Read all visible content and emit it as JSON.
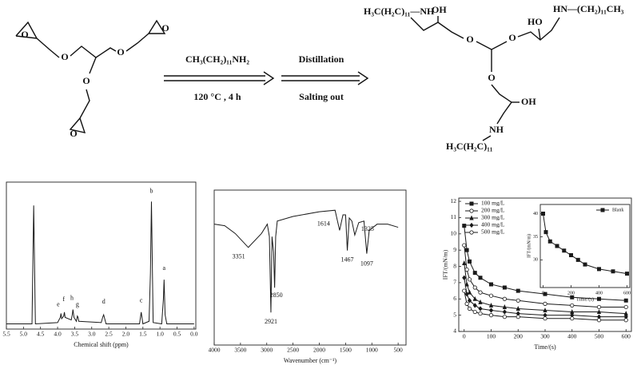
{
  "scheme": {
    "reactant_atoms": [
      "O",
      "O",
      "O",
      "O",
      "O",
      "O"
    ],
    "reagent": "CH₃(CH₂)₁₁NH₂",
    "conditions": "120 °C , 4 h",
    "step1": "Distillation",
    "step2": "Salting out",
    "product_labels": [
      "H₃C(H₂C)₁₁—NH",
      "OH",
      "HO",
      "HN—(CH₂)₁₁CH₃",
      "O",
      "O",
      "O",
      "OH",
      "NH",
      "H₃C(H₂C)₁₁"
    ]
  },
  "chart_data": [
    {
      "type": "line",
      "xlabel": "Chemical shift (ppm)",
      "xlim": [
        5.5,
        -0.05
      ],
      "ylim": [
        -3,
        110
      ],
      "xticks": [
        5.5,
        {
          "value": 5,
          "label": "5.0"
        },
        4.5,
        {
          "value": 4,
          "label": "4.0"
        },
        3.5,
        {
          "value": 3,
          "label": "3.0"
        },
        2.5,
        {
          "value": 2,
          "label": "2.0"
        },
        1.5,
        {
          "value": 1,
          "label": "1.0"
        },
        0.5,
        {
          "value": 0,
          "label": "0.0"
        }
      ],
      "series": [
        {
          "color": "#1a1a1a",
          "x": [
            5.5,
            4.75,
            4.7,
            4.65,
            4.0,
            3.92,
            3.9,
            3.88,
            3.82,
            3.8,
            3.78,
            3.6,
            3.57,
            3.55,
            3.52,
            3.45,
            3.42,
            3.4,
            3.38,
            2.72,
            2.68,
            2.65,
            2.62,
            2.58,
            1.6,
            1.55,
            1.5,
            1.32,
            1.28,
            1.25,
            1.2,
            0.95,
            0.9,
            0.88,
            0.85,
            0.8,
            0.0
          ],
          "values": [
            1,
            1,
            92,
            1,
            2,
            6,
            9,
            5,
            7,
            10,
            6,
            4,
            8,
            12,
            6,
            3,
            7,
            6,
            3,
            2,
            6,
            8,
            5,
            1,
            1,
            10,
            1,
            3,
            40,
            95,
            2,
            1,
            20,
            35,
            8,
            1,
            1
          ]
        }
      ],
      "annotations": [
        "a",
        "b",
        "c",
        "d",
        "e",
        "f",
        "g",
        "h"
      ]
    },
    {
      "type": "line",
      "xlabel": "Wavenumber (cm⁻¹)",
      "xlim": [
        4000,
        350
      ],
      "ylim": [
        0,
        100
      ],
      "xticks": [
        4000,
        3500,
        3000,
        2500,
        2000,
        1500,
        1000,
        500
      ],
      "series": [
        {
          "color": "#1a1a1a",
          "x": [
            4000,
            3800,
            3600,
            3351,
            3100,
            2990,
            2950,
            2921,
            2900,
            2870,
            2850,
            2830,
            2800,
            2500,
            2000,
            1700,
            1614,
            1550,
            1500,
            1467,
            1430,
            1380,
            1325,
            1250,
            1150,
            1097,
            1050,
            900,
            700,
            500
          ],
          "values": [
            78,
            77,
            72,
            63,
            72,
            78,
            70,
            21,
            70,
            60,
            37,
            70,
            80,
            83,
            86,
            87,
            74,
            84,
            84,
            61,
            82,
            80,
            71,
            79,
            80,
            59,
            74,
            78,
            78,
            76
          ]
        }
      ],
      "peak_labels": [
        3351,
        2921,
        2850,
        1614,
        1467,
        1325,
        1097
      ]
    },
    {
      "type": "line",
      "xlabel": "Time/(s)",
      "ylabel": "IFT/(mN/m)",
      "xlim": [
        -20,
        620
      ],
      "ylim": [
        4,
        12.2
      ],
      "xticks": [
        0,
        100,
        200,
        300,
        400,
        500,
        600
      ],
      "yticks": [
        4,
        5,
        6,
        7,
        8,
        9,
        10,
        11,
        12
      ],
      "legend": "upper left",
      "series": [
        {
          "name": "100 mg/L",
          "color": "#1a1a1a",
          "marker": "square",
          "x": [
            0,
            10,
            20,
            40,
            60,
            100,
            150,
            200,
            300,
            400,
            500,
            600
          ],
          "values": [
            10.5,
            9.0,
            8.3,
            7.6,
            7.3,
            6.9,
            6.7,
            6.5,
            6.3,
            6.1,
            6.0,
            5.9
          ]
        },
        {
          "name": "200 mg/L",
          "color": "#1a1a1a",
          "marker": "circle",
          "x": [
            0,
            10,
            20,
            40,
            60,
            100,
            150,
            200,
            300,
            400,
            500,
            600
          ],
          "values": [
            9.3,
            7.8,
            7.2,
            6.7,
            6.4,
            6.2,
            6.0,
            5.9,
            5.7,
            5.6,
            5.5,
            5.5
          ]
        },
        {
          "name": "300 mg/L",
          "color": "#1a1a1a",
          "marker": "triangle",
          "x": [
            0,
            10,
            20,
            40,
            60,
            100,
            150,
            200,
            300,
            400,
            500,
            600
          ],
          "values": [
            8.2,
            6.9,
            6.4,
            6.0,
            5.8,
            5.6,
            5.5,
            5.4,
            5.3,
            5.2,
            5.2,
            5.1
          ]
        },
        {
          "name": "400 mg/L",
          "color": "#1a1a1a",
          "marker": "diamond",
          "x": [
            0,
            10,
            20,
            40,
            60,
            100,
            150,
            200,
            300,
            400,
            500,
            600
          ],
          "values": [
            7.3,
            6.3,
            5.9,
            5.6,
            5.4,
            5.3,
            5.2,
            5.1,
            5.0,
            5.0,
            4.9,
            4.9
          ]
        },
        {
          "name": "500 mg/L",
          "color": "#1a1a1a",
          "marker": "circle",
          "x": [
            0,
            10,
            20,
            40,
            60,
            100,
            150,
            200,
            300,
            400,
            500,
            600
          ],
          "values": [
            6.5,
            5.7,
            5.4,
            5.2,
            5.1,
            5.0,
            4.9,
            4.9,
            4.8,
            4.8,
            4.7,
            4.7
          ]
        }
      ]
    },
    {
      "type": "line",
      "inset": true,
      "xlabel": "Time/(s)",
      "ylabel": "IFT/(mN/m)",
      "xlim": [
        -20,
        620
      ],
      "ylim": [
        24,
        42
      ],
      "xticks": [
        0,
        200,
        400,
        600
      ],
      "yticks": [
        30,
        35,
        40
      ],
      "legend": "upper right",
      "series": [
        {
          "name": "Blank",
          "color": "#1a1a1a",
          "marker": "square",
          "x": [
            0,
            20,
            50,
            100,
            150,
            200,
            250,
            300,
            400,
            500,
            600
          ],
          "values": [
            40,
            36,
            34,
            33,
            32,
            31,
            30,
            29,
            28,
            27.5,
            27
          ]
        }
      ]
    }
  ]
}
